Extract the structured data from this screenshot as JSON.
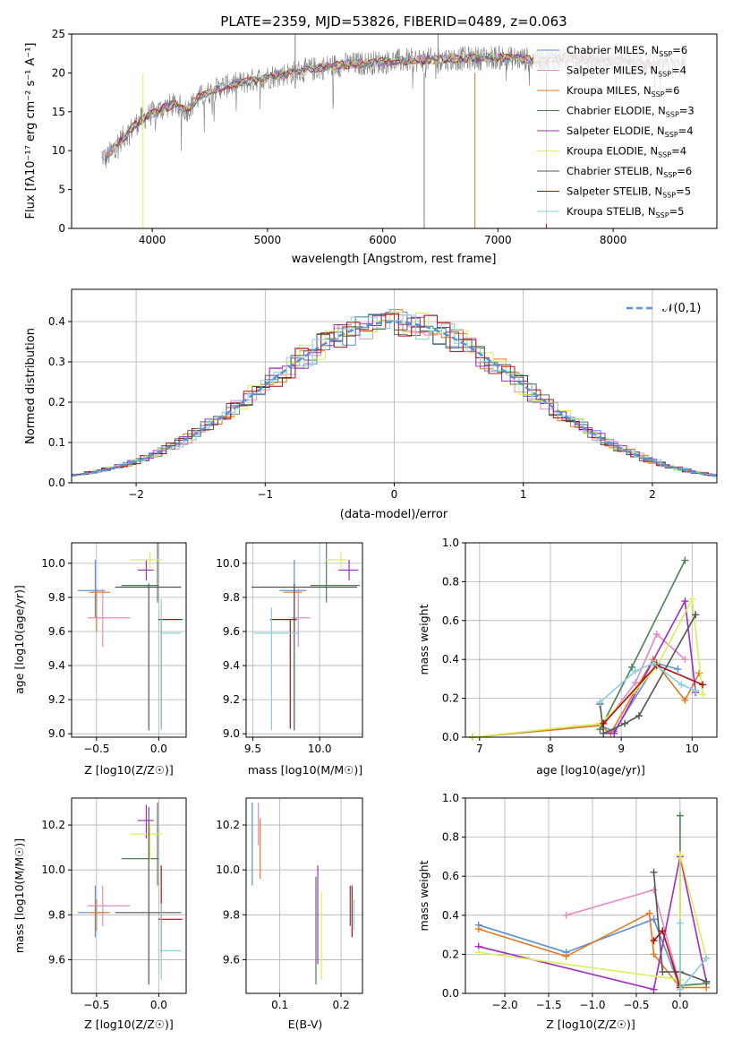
{
  "title": "PLATE=2359, MJD=53826, FIBERID=0489, z=0.063",
  "model_colors": [
    "#5b8fd6",
    "#e78ac3",
    "#e6781e",
    "#4e7f58",
    "#a12bbf",
    "#d9ef5c",
    "#555555",
    "#b10f0f",
    "#88d0da"
  ],
  "spectrum": {
    "xlabel": "wavelength [Angstrom, rest frame]",
    "ylabel": "Flux [fλ10⁻¹⁷ erg cm⁻² s⁻¹ A⁻¹]",
    "xlim": [
      3300,
      8900
    ],
    "ylim": [
      0,
      25
    ],
    "xticks": [
      "4000",
      "5000",
      "6000",
      "7000",
      "8000"
    ],
    "yticks": [
      "0",
      "5",
      "10",
      "15",
      "20",
      "25"
    ],
    "data_color": "#7f7f7f",
    "legend": [
      "Chabrier MILES, N_SSP=6",
      "Salpeter MILES, N_SSP=4",
      "Kroupa MILES, N_SSP=6",
      "Chabrier ELODIE, N_SSP=3",
      "Salpeter ELODIE, N_SSP=4",
      "Kroupa ELODIE, N_SSP=4",
      "Chabrier STELIB, N_SSP=6",
      "Salpeter STELIB, N_SSP=5",
      "Kroupa STELIB, N_SSP=5"
    ]
  },
  "residuals": {
    "xlabel": "(data-model)/error",
    "ylabel": "Normed distribution",
    "xlim": [
      -2.5,
      2.5
    ],
    "ylim": [
      0,
      0.48
    ],
    "xticks": [
      "−2",
      "−1",
      "0",
      "1",
      "2"
    ],
    "yticks": [
      "0.0",
      "0.1",
      "0.2",
      "0.3",
      "0.4"
    ],
    "legend": "𝒩(0,1)",
    "gaussian_color": "#5b8fd6"
  },
  "panels": {
    "age_vs_z": {
      "xlabel": "Z [log10(Z/Z☉)]",
      "ylabel": "age  [log10(age/yr)]",
      "xticks": [
        "−0.5",
        "0.0"
      ],
      "yticks": [
        "9.0",
        "9.2",
        "9.4",
        "9.6",
        "9.8",
        "10.0"
      ]
    },
    "age_vs_mass": {
      "xlabel": "mass [log10(M/M☉)]",
      "xticks": [
        "9.5",
        "10.0"
      ],
      "yticks": [
        "9.0",
        "9.2",
        "9.4",
        "9.6",
        "9.8",
        "10.0"
      ]
    },
    "mw_vs_age": {
      "xlabel": "age  [log10(age/yr)]",
      "ylabel": "mass weight",
      "xticks": [
        "7",
        "8",
        "9",
        "10"
      ],
      "yticks": [
        "0.0",
        "0.2",
        "0.4",
        "0.6",
        "0.8",
        "1.0"
      ]
    },
    "mass_vs_z": {
      "xlabel": "Z [log10(Z/Z☉)]",
      "ylabel": "mass [log10(M/M☉)]",
      "xticks": [
        "−0.5",
        "0.0"
      ],
      "yticks": [
        "9.6",
        "9.8",
        "10.0",
        "10.2"
      ]
    },
    "mass_vs_ebv": {
      "xlabel": "E(B-V)",
      "xticks": [
        "0.1",
        "0.2"
      ],
      "yticks": [
        "9.6",
        "9.8",
        "10.0",
        "10.2"
      ]
    },
    "mw_vs_z": {
      "xlabel": "Z [log10(Z/Z☉)]",
      "ylabel": "mass weight",
      "xticks": [
        "−2.0",
        "−1.5",
        "−1.0",
        "−0.5",
        "0.0"
      ],
      "yticks": [
        "0.0",
        "0.2",
        "0.4",
        "0.6",
        "0.8",
        "1.0"
      ]
    }
  },
  "chart_data": [
    {
      "type": "line",
      "name": "spectrum",
      "title": "PLATE=2359, MJD=53826, FIBERID=0489, z=0.063",
      "xlabel": "wavelength [Angstrom, rest frame]",
      "ylabel": "Flux [fλ10⁻¹⁷ erg cm⁻² s⁻¹ A⁻¹]",
      "xlim": [
        3300,
        8900
      ],
      "ylim": [
        0,
        25
      ],
      "continuum": {
        "x": [
          3550,
          3600,
          3700,
          3800,
          3900,
          4000,
          4100,
          4200,
          4300,
          4400,
          4500,
          4600,
          4800,
          5000,
          5200,
          5400,
          5600,
          5800,
          6000,
          6200,
          6400,
          6600,
          6800,
          7000,
          7200,
          7400,
          7600,
          7800,
          8000,
          8200,
          8400,
          8600
        ],
        "y": [
          9.5,
          9.0,
          11.0,
          12.5,
          14.0,
          14.8,
          15.5,
          16.0,
          15.2,
          16.8,
          17.5,
          18.2,
          18.8,
          19.5,
          20.0,
          20.5,
          21.0,
          21.2,
          21.4,
          21.6,
          21.7,
          21.8,
          21.9,
          22.0,
          21.8,
          21.7,
          22.0,
          21.6,
          21.5,
          21.3,
          21.0,
          20.8
        ]
      },
      "grid": false
    },
    {
      "type": "histogram",
      "name": "residual distribution",
      "xlabel": "(data-model)/error",
      "ylabel": "Normed distribution",
      "xlim": [
        -2.5,
        2.5
      ],
      "ylim": [
        0,
        0.48
      ],
      "bin_width": 0.1,
      "series_offsets_note_free": true,
      "gaussian": {
        "mean": 0,
        "sigma": 1,
        "label": "𝒩(0,1)"
      },
      "grid": true
    },
    {
      "type": "scatter",
      "name": "age vs Z",
      "xlabel": "Z [log10(Z/Z☉)]",
      "ylabel": "age  [log10(age/yr)]",
      "xlim": [
        -0.7,
        0.22
      ],
      "ylim": [
        8.98,
        10.12
      ],
      "points": [
        {
          "x": -0.51,
          "y": 9.84,
          "xerr": [
            0.14,
            0.08
          ],
          "yerr": [
            0.16,
            0.18
          ]
        },
        {
          "x": -0.45,
          "y": 9.68,
          "xerr": [
            0.12,
            0.22
          ],
          "yerr": [
            0.17,
            0.17
          ]
        },
        {
          "x": -0.5,
          "y": 9.83,
          "xerr": [
            0.06,
            0.11
          ],
          "yerr": [
            0.23,
            0.02
          ]
        },
        {
          "x": -0.01,
          "y": 9.87,
          "xerr": [
            0.29,
            0.01
          ],
          "yerr": [
            0.1,
            0.25
          ]
        },
        {
          "x": -0.1,
          "y": 9.96,
          "xerr": [
            0.07,
            0.06
          ],
          "yerr": [
            0.06,
            0.06
          ]
        },
        {
          "x": -0.07,
          "y": 10.02,
          "xerr": [
            0.16,
            0.1
          ],
          "yerr": [
            0.05,
            0.05
          ]
        },
        {
          "x": -0.08,
          "y": 9.86,
          "xerr": [
            0.27,
            0.26
          ],
          "yerr": [
            0.84,
            0.02
          ]
        },
        {
          "x": 0.02,
          "y": 9.67,
          "xerr": [
            0.02,
            0.17
          ],
          "yerr": [
            0.64,
            0.0
          ]
        },
        {
          "x": 0.02,
          "y": 9.59,
          "xerr": [
            0.01,
            0.16
          ],
          "yerr": [
            0.57,
            0.2
          ]
        }
      ],
      "grid": true
    },
    {
      "type": "scatter",
      "name": "age vs mass",
      "xlabel": "mass [log10(M/M☉)]",
      "xlim": [
        9.45,
        10.32
      ],
      "ylim": [
        8.98,
        10.12
      ],
      "points": [
        {
          "x": 9.81,
          "y": 9.84,
          "xerr": [
            0.11,
            0.09
          ],
          "yerr": [
            0.16,
            0.18
          ]
        },
        {
          "x": 9.84,
          "y": 9.68,
          "xerr": [
            0.05,
            0.09
          ],
          "yerr": [
            0.17,
            0.17
          ]
        },
        {
          "x": 9.81,
          "y": 9.83,
          "xerr": [
            0.08,
            0.06
          ],
          "yerr": [
            0.23,
            0.02
          ]
        },
        {
          "x": 10.05,
          "y": 9.87,
          "xerr": [
            0.12,
            0.25
          ],
          "yerr": [
            0.1,
            0.25
          ]
        },
        {
          "x": 10.22,
          "y": 9.96,
          "xerr": [
            0.08,
            0.07
          ],
          "yerr": [
            0.06,
            0.06
          ]
        },
        {
          "x": 10.16,
          "y": 10.02,
          "xerr": [
            0.12,
            0.05
          ],
          "yerr": [
            0.05,
            0.05
          ]
        },
        {
          "x": 9.81,
          "y": 9.86,
          "xerr": [
            0.32,
            0.47
          ],
          "yerr": [
            0.84,
            0.02
          ]
        },
        {
          "x": 9.78,
          "y": 9.67,
          "xerr": [
            0.15,
            0.05
          ],
          "yerr": [
            0.64,
            0.0
          ]
        },
        {
          "x": 9.64,
          "y": 9.59,
          "xerr": [
            0.13,
            0.21
          ],
          "yerr": [
            0.57,
            0.15
          ]
        }
      ],
      "grid": true
    },
    {
      "type": "line",
      "name": "mass weight vs age",
      "xlabel": "age  [log10(age/yr)]",
      "ylabel": "mass weight",
      "xlim": [
        6.8,
        10.35
      ],
      "ylim": [
        0,
        1.0
      ],
      "series": [
        {
          "x": [
            6.9,
            8.7,
            8.9,
            9.5,
            9.8
          ],
          "y": [
            0.0,
            0.06,
            0.03,
            0.38,
            0.35
          ]
        },
        {
          "x": [
            8.7,
            9.2,
            9.5,
            9.9
          ],
          "y": [
            0.04,
            0.28,
            0.53,
            0.4
          ]
        },
        {
          "x": [
            6.9,
            8.7,
            8.85,
            9.45,
            9.9,
            10.1
          ],
          "y": [
            0.0,
            0.06,
            0.02,
            0.4,
            0.19,
            0.33
          ]
        },
        {
          "x": [
            8.7,
            9.15,
            9.9
          ],
          "y": [
            0.04,
            0.36,
            0.91
          ]
        },
        {
          "x": [
            8.75,
            8.9,
            9.9,
            10.05
          ],
          "y": [
            0.02,
            0.02,
            0.7,
            0.23
          ]
        },
        {
          "x": [
            6.9,
            8.7,
            9.2,
            9.5,
            10.0,
            10.15
          ],
          "y": [
            0.0,
            0.07,
            0.24,
            0.36,
            0.71,
            0.22
          ]
        },
        {
          "x": [
            8.7,
            8.75,
            9.05,
            9.25,
            10.05
          ],
          "y": [
            0.17,
            0.02,
            0.07,
            0.11,
            0.63
          ]
        },
        {
          "x": [
            8.75,
            9.5,
            10.15
          ],
          "y": [
            0.07,
            0.37,
            0.27
          ]
        },
        {
          "x": [
            8.7,
            9.2,
            9.45,
            9.85,
            10.05
          ],
          "y": [
            0.18,
            0.34,
            0.38,
            0.27,
            0.24
          ]
        }
      ],
      "grid": true
    },
    {
      "type": "scatter",
      "name": "mass vs Z",
      "xlabel": "Z [log10(Z/Z☉)]",
      "ylabel": "mass [log10(M/M☉)]",
      "xlim": [
        -0.7,
        0.22
      ],
      "ylim": [
        9.45,
        10.32
      ],
      "points": [
        {
          "x": -0.51,
          "y": 9.81,
          "xerr": [
            0.14,
            0.08
          ],
          "yerr": [
            0.11,
            0.12
          ]
        },
        {
          "x": -0.45,
          "y": 9.84,
          "xerr": [
            0.12,
            0.22
          ],
          "yerr": [
            0.09,
            0.09
          ]
        },
        {
          "x": -0.5,
          "y": 9.81,
          "xerr": [
            0.06,
            0.11
          ],
          "yerr": [
            0.08,
            0.06
          ]
        },
        {
          "x": -0.01,
          "y": 10.05,
          "xerr": [
            0.29,
            0.01
          ],
          "yerr": [
            0.12,
            0.25
          ]
        },
        {
          "x": -0.1,
          "y": 10.22,
          "xerr": [
            0.07,
            0.06
          ],
          "yerr": [
            0.08,
            0.07
          ]
        },
        {
          "x": -0.07,
          "y": 10.16,
          "xerr": [
            0.16,
            0.1
          ],
          "yerr": [
            0.12,
            0.05
          ]
        },
        {
          "x": -0.08,
          "y": 9.81,
          "xerr": [
            0.27,
            0.26
          ],
          "yerr": [
            0.32,
            0.47
          ]
        },
        {
          "x": 0.02,
          "y": 9.78,
          "xerr": [
            0.02,
            0.17
          ],
          "yerr": [
            0.15,
            0.24
          ]
        },
        {
          "x": 0.02,
          "y": 9.64,
          "xerr": [
            0.01,
            0.16
          ],
          "yerr": [
            0.13,
            0.21
          ]
        }
      ],
      "grid": true
    },
    {
      "type": "scatter",
      "name": "mass vs E(B-V)",
      "xlabel": "E(B-V)",
      "xlim": [
        0.045,
        0.235
      ],
      "ylim": [
        9.45,
        10.32
      ],
      "points": [
        {
          "x": 0.055,
          "y": 10.05,
          "xerr": [
            0,
            0
          ],
          "yerr": [
            0.12,
            0.25
          ]
        },
        {
          "x": 0.065,
          "y": 10.22,
          "xerr": [
            0,
            0
          ],
          "yerr": [
            0.11,
            0.08
          ]
        },
        {
          "x": 0.068,
          "y": 10.16,
          "xerr": [
            0,
            0
          ],
          "yerr": [
            0.2,
            0.07
          ]
        },
        {
          "x": 0.159,
          "y": 9.81,
          "xerr": [
            0,
            0
          ],
          "yerr": [
            0.32,
            0.16
          ]
        },
        {
          "x": 0.162,
          "y": 9.78,
          "xerr": [
            0,
            0
          ],
          "yerr": [
            0.2,
            0.24
          ]
        },
        {
          "x": 0.168,
          "y": 9.64,
          "xerr": [
            0,
            0
          ],
          "yerr": [
            0.13,
            0.26
          ]
        },
        {
          "x": 0.215,
          "y": 9.84,
          "xerr": [
            0,
            0
          ],
          "yerr": [
            0.09,
            0.09
          ]
        },
        {
          "x": 0.218,
          "y": 9.81,
          "xerr": [
            0,
            0
          ],
          "yerr": [
            0.11,
            0.12
          ]
        },
        {
          "x": 0.221,
          "y": 9.81,
          "xerr": [
            0,
            0
          ],
          "yerr": [
            0.08,
            0.06
          ]
        }
      ],
      "grid": true
    },
    {
      "type": "line",
      "name": "mass weight vs Z",
      "xlabel": "Z [log10(Z/Z☉)]",
      "ylabel": "mass weight",
      "xlim": [
        -2.45,
        0.42
      ],
      "ylim": [
        0,
        1.0
      ],
      "series": [
        {
          "x": [
            -2.3,
            -1.3,
            -0.3,
            0.0
          ],
          "y": [
            0.35,
            0.21,
            0.38,
            0.03
          ]
        },
        {
          "x": [
            -1.3,
            -0.3,
            0.0
          ],
          "y": [
            0.4,
            0.53,
            0.04
          ]
        },
        {
          "x": [
            -2.3,
            -1.3,
            -0.35,
            -0.3,
            0.0,
            0.3
          ],
          "y": [
            0.33,
            0.19,
            0.41,
            0.2,
            0.03,
            0.03
          ]
        },
        {
          "x": [
            0.0,
            0.0,
            0.3
          ],
          "y": [
            0.91,
            0.04,
            0.05
          ]
        },
        {
          "x": [
            -2.3,
            -0.3,
            0.0,
            0.3
          ],
          "y": [
            0.24,
            0.02,
            0.7,
            0.06
          ]
        },
        {
          "x": [
            -2.3,
            0.0,
            0.0,
            0.3
          ],
          "y": [
            0.21,
            0.07,
            0.71,
            0.18
          ]
        },
        {
          "x": [
            -0.3,
            -0.2,
            0.0,
            0.3
          ],
          "y": [
            0.62,
            0.11,
            0.11,
            0.06
          ]
        },
        {
          "x": [
            -0.3,
            -0.2,
            0.0
          ],
          "y": [
            0.27,
            0.32,
            0.03
          ]
        },
        {
          "x": [
            0.0,
            0.0,
            0.3
          ],
          "y": [
            0.36,
            0.02,
            0.18
          ]
        }
      ],
      "grid": true
    }
  ]
}
